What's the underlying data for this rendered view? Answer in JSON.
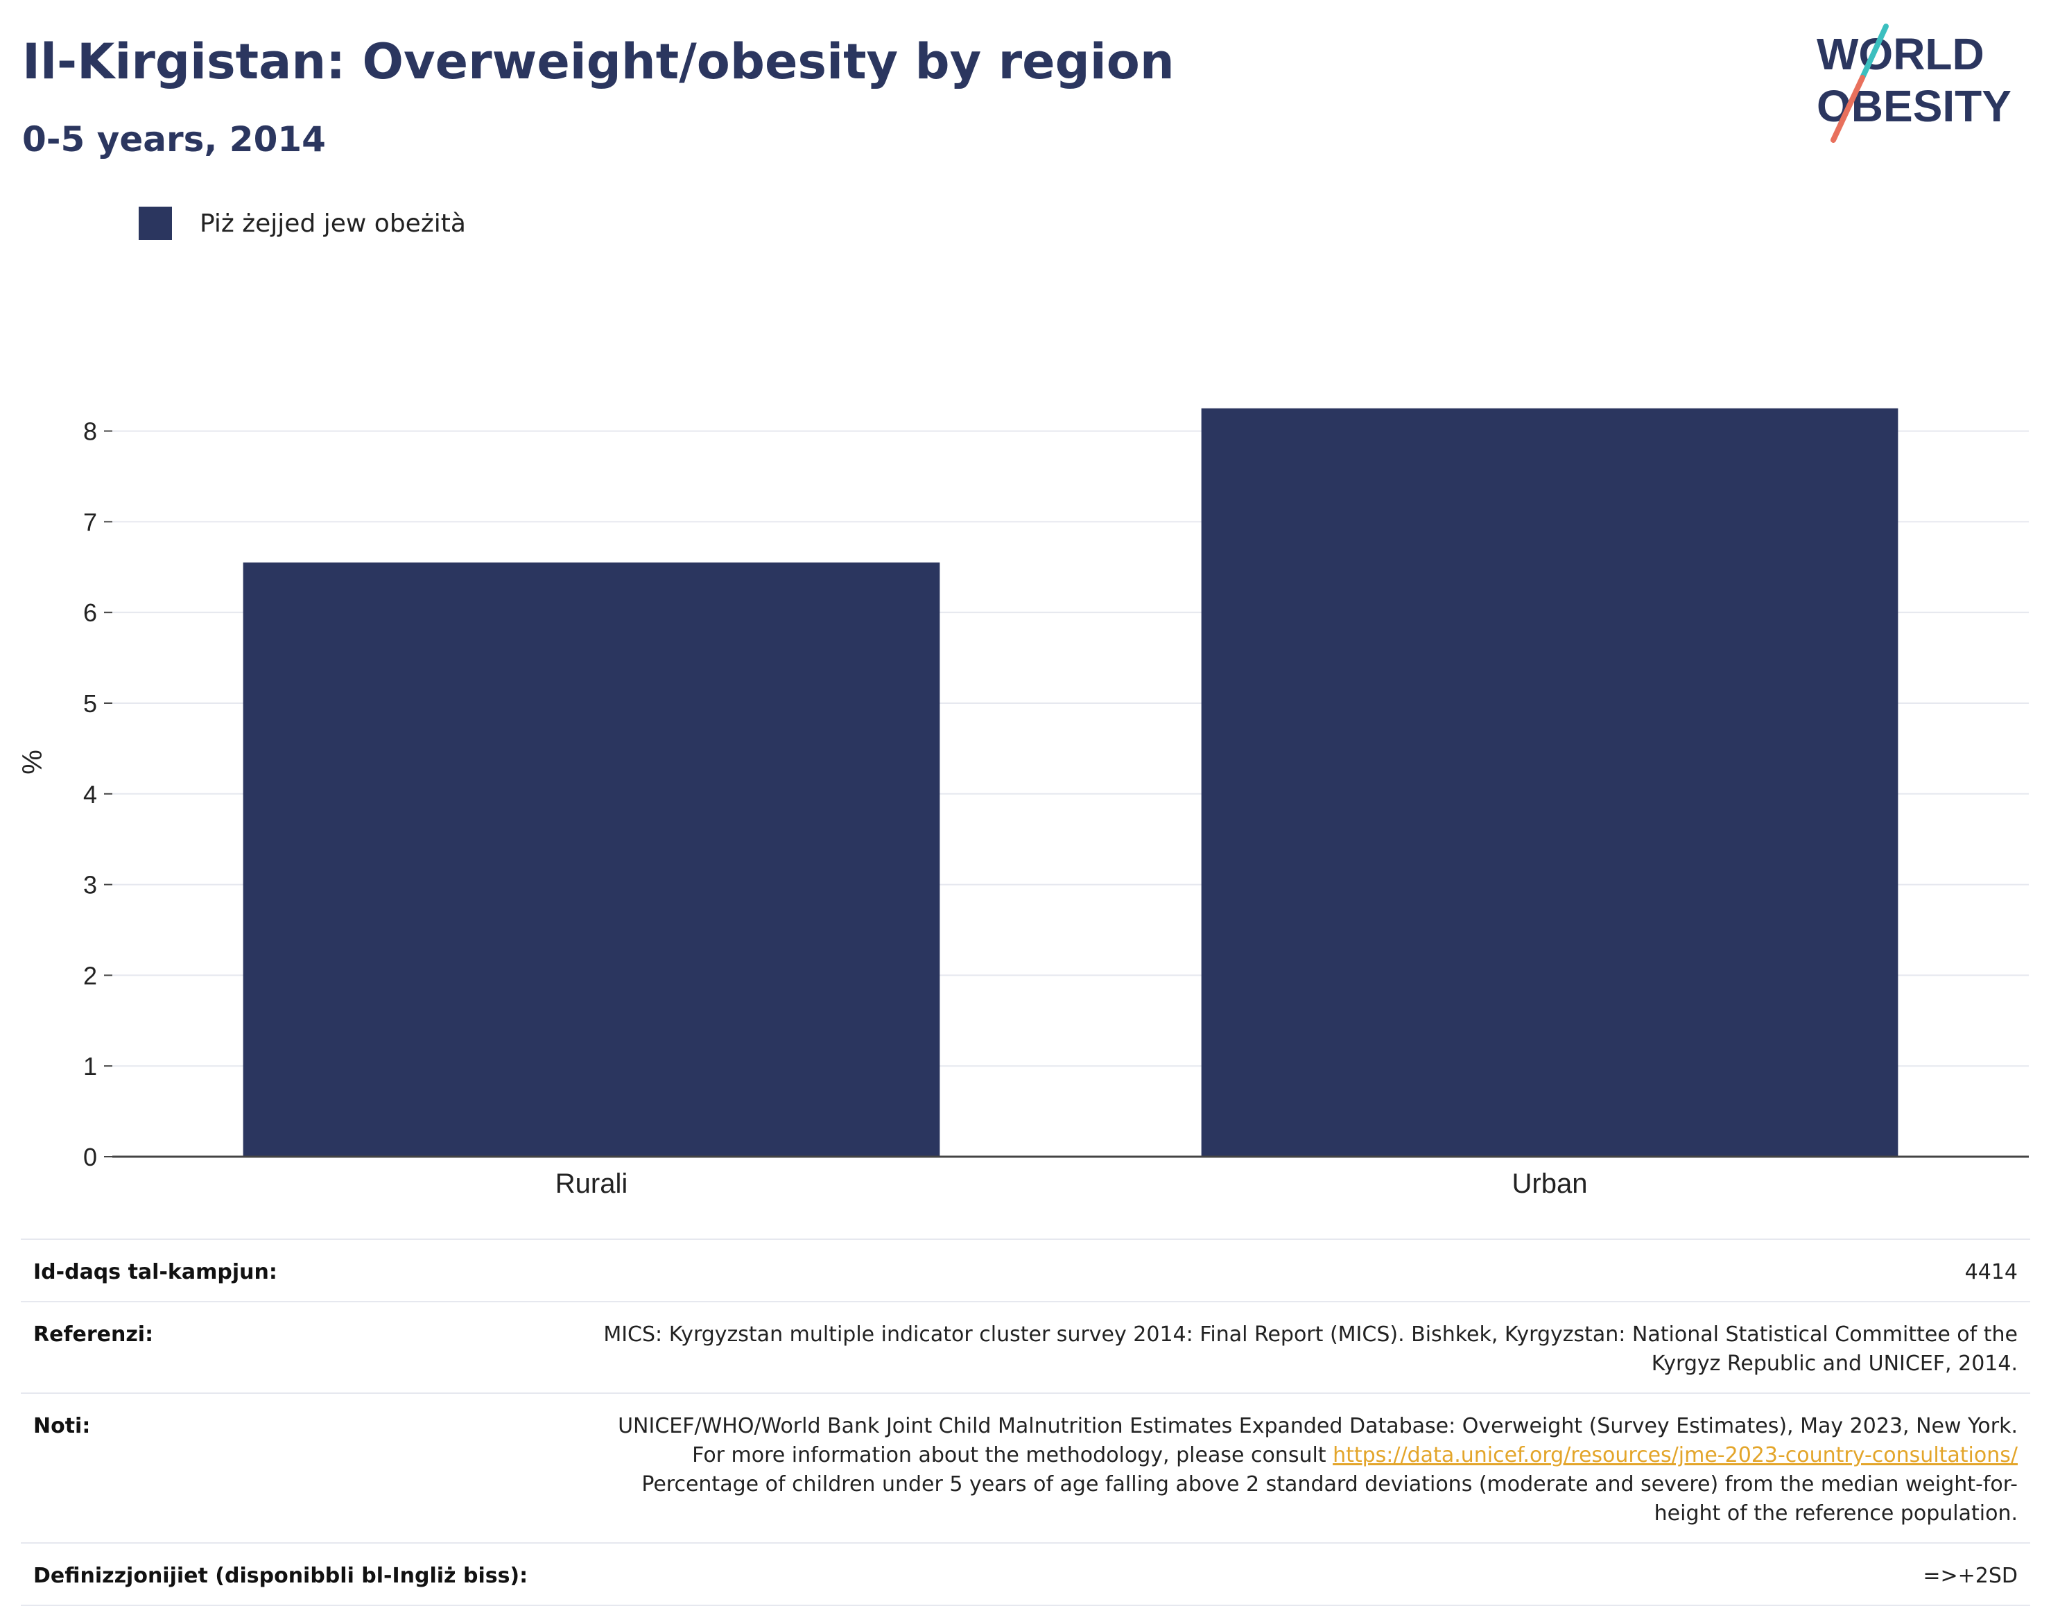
{
  "header": {
    "title": "Il-Kirgistan: Overweight/obesity by region",
    "subtitle": "0-5 years, 2014"
  },
  "logo": {
    "line1": "WORLD",
    "line2": "OBESITY",
    "colors": {
      "text": "#2b365f",
      "slash_top": "#3bbfbf",
      "slash_bottom": "#e8705c"
    }
  },
  "legend": {
    "label": "Piż żejjed jew obeżità"
  },
  "chart_data": {
    "type": "bar",
    "categories": [
      "Rurali",
      "Urban"
    ],
    "series": [
      {
        "name": "Piż żejjed jew obeżità",
        "values": [
          6.55,
          8.25
        ],
        "color": "#2b365f"
      }
    ],
    "ylabel": "%",
    "ylim": [
      0,
      8.7
    ],
    "yticks": [
      0,
      1,
      2,
      3,
      4,
      5,
      6,
      7,
      8
    ],
    "grid": true,
    "legend_position": "top-left"
  },
  "info": {
    "sample_size_label": "Id-daqs tal-kampjun:",
    "sample_size_value": "4414",
    "references_label": "Referenzi:",
    "references_value": "MICS: Kyrgyzstan multiple indicator cluster survey 2014: Final Report (MICS). Bishkek, Kyrgyzstan: National Statistical Committee of the Kyrgyz Republic and UNICEF, 2014.",
    "notes_label": "Noti:",
    "notes_text_1": "UNICEF/WHO/World Bank Joint Child Malnutrition Estimates Expanded Database: Overweight (Survey Estimates), May 2023, New York. For more information about the methodology, please consult ",
    "notes_link": "https://data.unicef.org/resources/jme-2023-country-consultations/",
    "notes_text_2": " Percentage of children under 5 years of age falling above 2 standard deviations (moderate and severe) from the median weight-for-height of the reference population.",
    "definitions_label": "Definizzjonijiet (disponibbli bl-Ingliż biss):",
    "definitions_value": "=>+2SD"
  }
}
